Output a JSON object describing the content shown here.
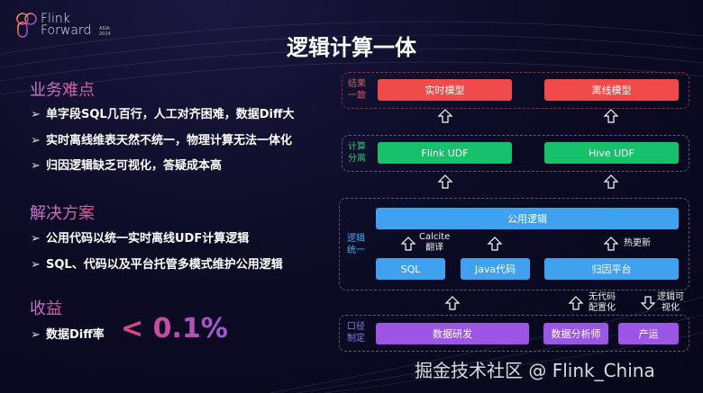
{
  "logo": {
    "line1": "Flink",
    "line2": "Forward",
    "badge_line1": "ASIA",
    "badge_line2": "2024"
  },
  "title": "逻辑计算一体",
  "sections": [
    {
      "heading": "业务难点",
      "bullets": [
        "单字段SQL几百行，人工对齐困难，数据Diff大",
        "实时离线维表天然不统一，物理计算无法一体化",
        "归因逻辑缺乏可视化，答疑成本高"
      ]
    },
    {
      "heading": "解决方案",
      "bullets": [
        "公用代码以统一实时离线UDF计算逻辑",
        "SQL、代码以及平台托管多模式维护公用逻辑"
      ]
    },
    {
      "heading": "收益",
      "bullets": [
        "数据Diff率"
      ],
      "highlight": "< 0.1%"
    }
  ],
  "diagram": {
    "layer_result": {
      "label1": "结果",
      "label2": "一致",
      "blocks": [
        "实时模型",
        "离线模型"
      ],
      "color": "#f04a4a"
    },
    "layer_compute": {
      "label1": "计算",
      "label2": "分离",
      "blocks": [
        "Flink UDF",
        "Hive UDF"
      ],
      "color": "#17c06b"
    },
    "layer_logic": {
      "label1": "逻辑",
      "label2": "统一",
      "top": "公用逻辑",
      "blocks": [
        "SQL",
        "Java代码",
        "归因平台"
      ],
      "notes": {
        "calcite1": "Calcite",
        "calcite2": "翻译",
        "hot": "热更新"
      },
      "color": "#3ea2f0"
    },
    "layer_caliber": {
      "label1": "口径",
      "label2": "制定",
      "blocks": [
        "数据研发",
        "数据分析师",
        "产运"
      ],
      "notes": {
        "nocode1": "无代码",
        "nocode2": "配置化",
        "vis1": "逻辑可",
        "vis2": "视化"
      },
      "color": "#9c56e6"
    }
  },
  "watermark": "掘金技术社区 @ Flink_China"
}
